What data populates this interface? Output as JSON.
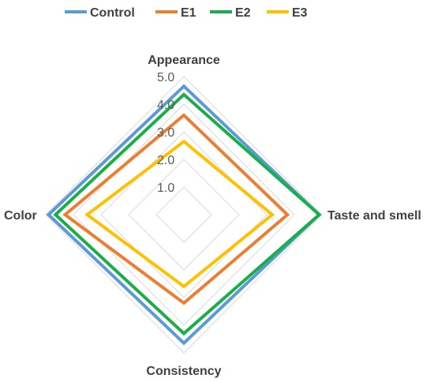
{
  "chart_data": {
    "type": "radar",
    "axes": [
      "Appearance",
      "Taste and smell",
      "Consistency",
      "Color"
    ],
    "rlim": [
      0,
      5
    ],
    "ticks": [
      "1.0",
      "2.0",
      "3.0",
      "4.0",
      "5.0"
    ],
    "tick_values": [
      1,
      2,
      3,
      4,
      5
    ],
    "grid": true,
    "legend_position": "top",
    "series": [
      {
        "name": "Control",
        "color": "#5B9BD5",
        "values": [
          4.65,
          4.9,
          4.65,
          4.9
        ]
      },
      {
        "name": "E1",
        "color": "#ED7D31",
        "values": [
          3.6,
          3.75,
          3.2,
          4.3
        ]
      },
      {
        "name": "E2",
        "color": "#1AAE48",
        "values": [
          4.35,
          4.9,
          4.3,
          4.65
        ]
      },
      {
        "name": "E3",
        "color": "#FFC000",
        "values": [
          2.65,
          3.2,
          2.6,
          3.5
        ]
      }
    ]
  }
}
